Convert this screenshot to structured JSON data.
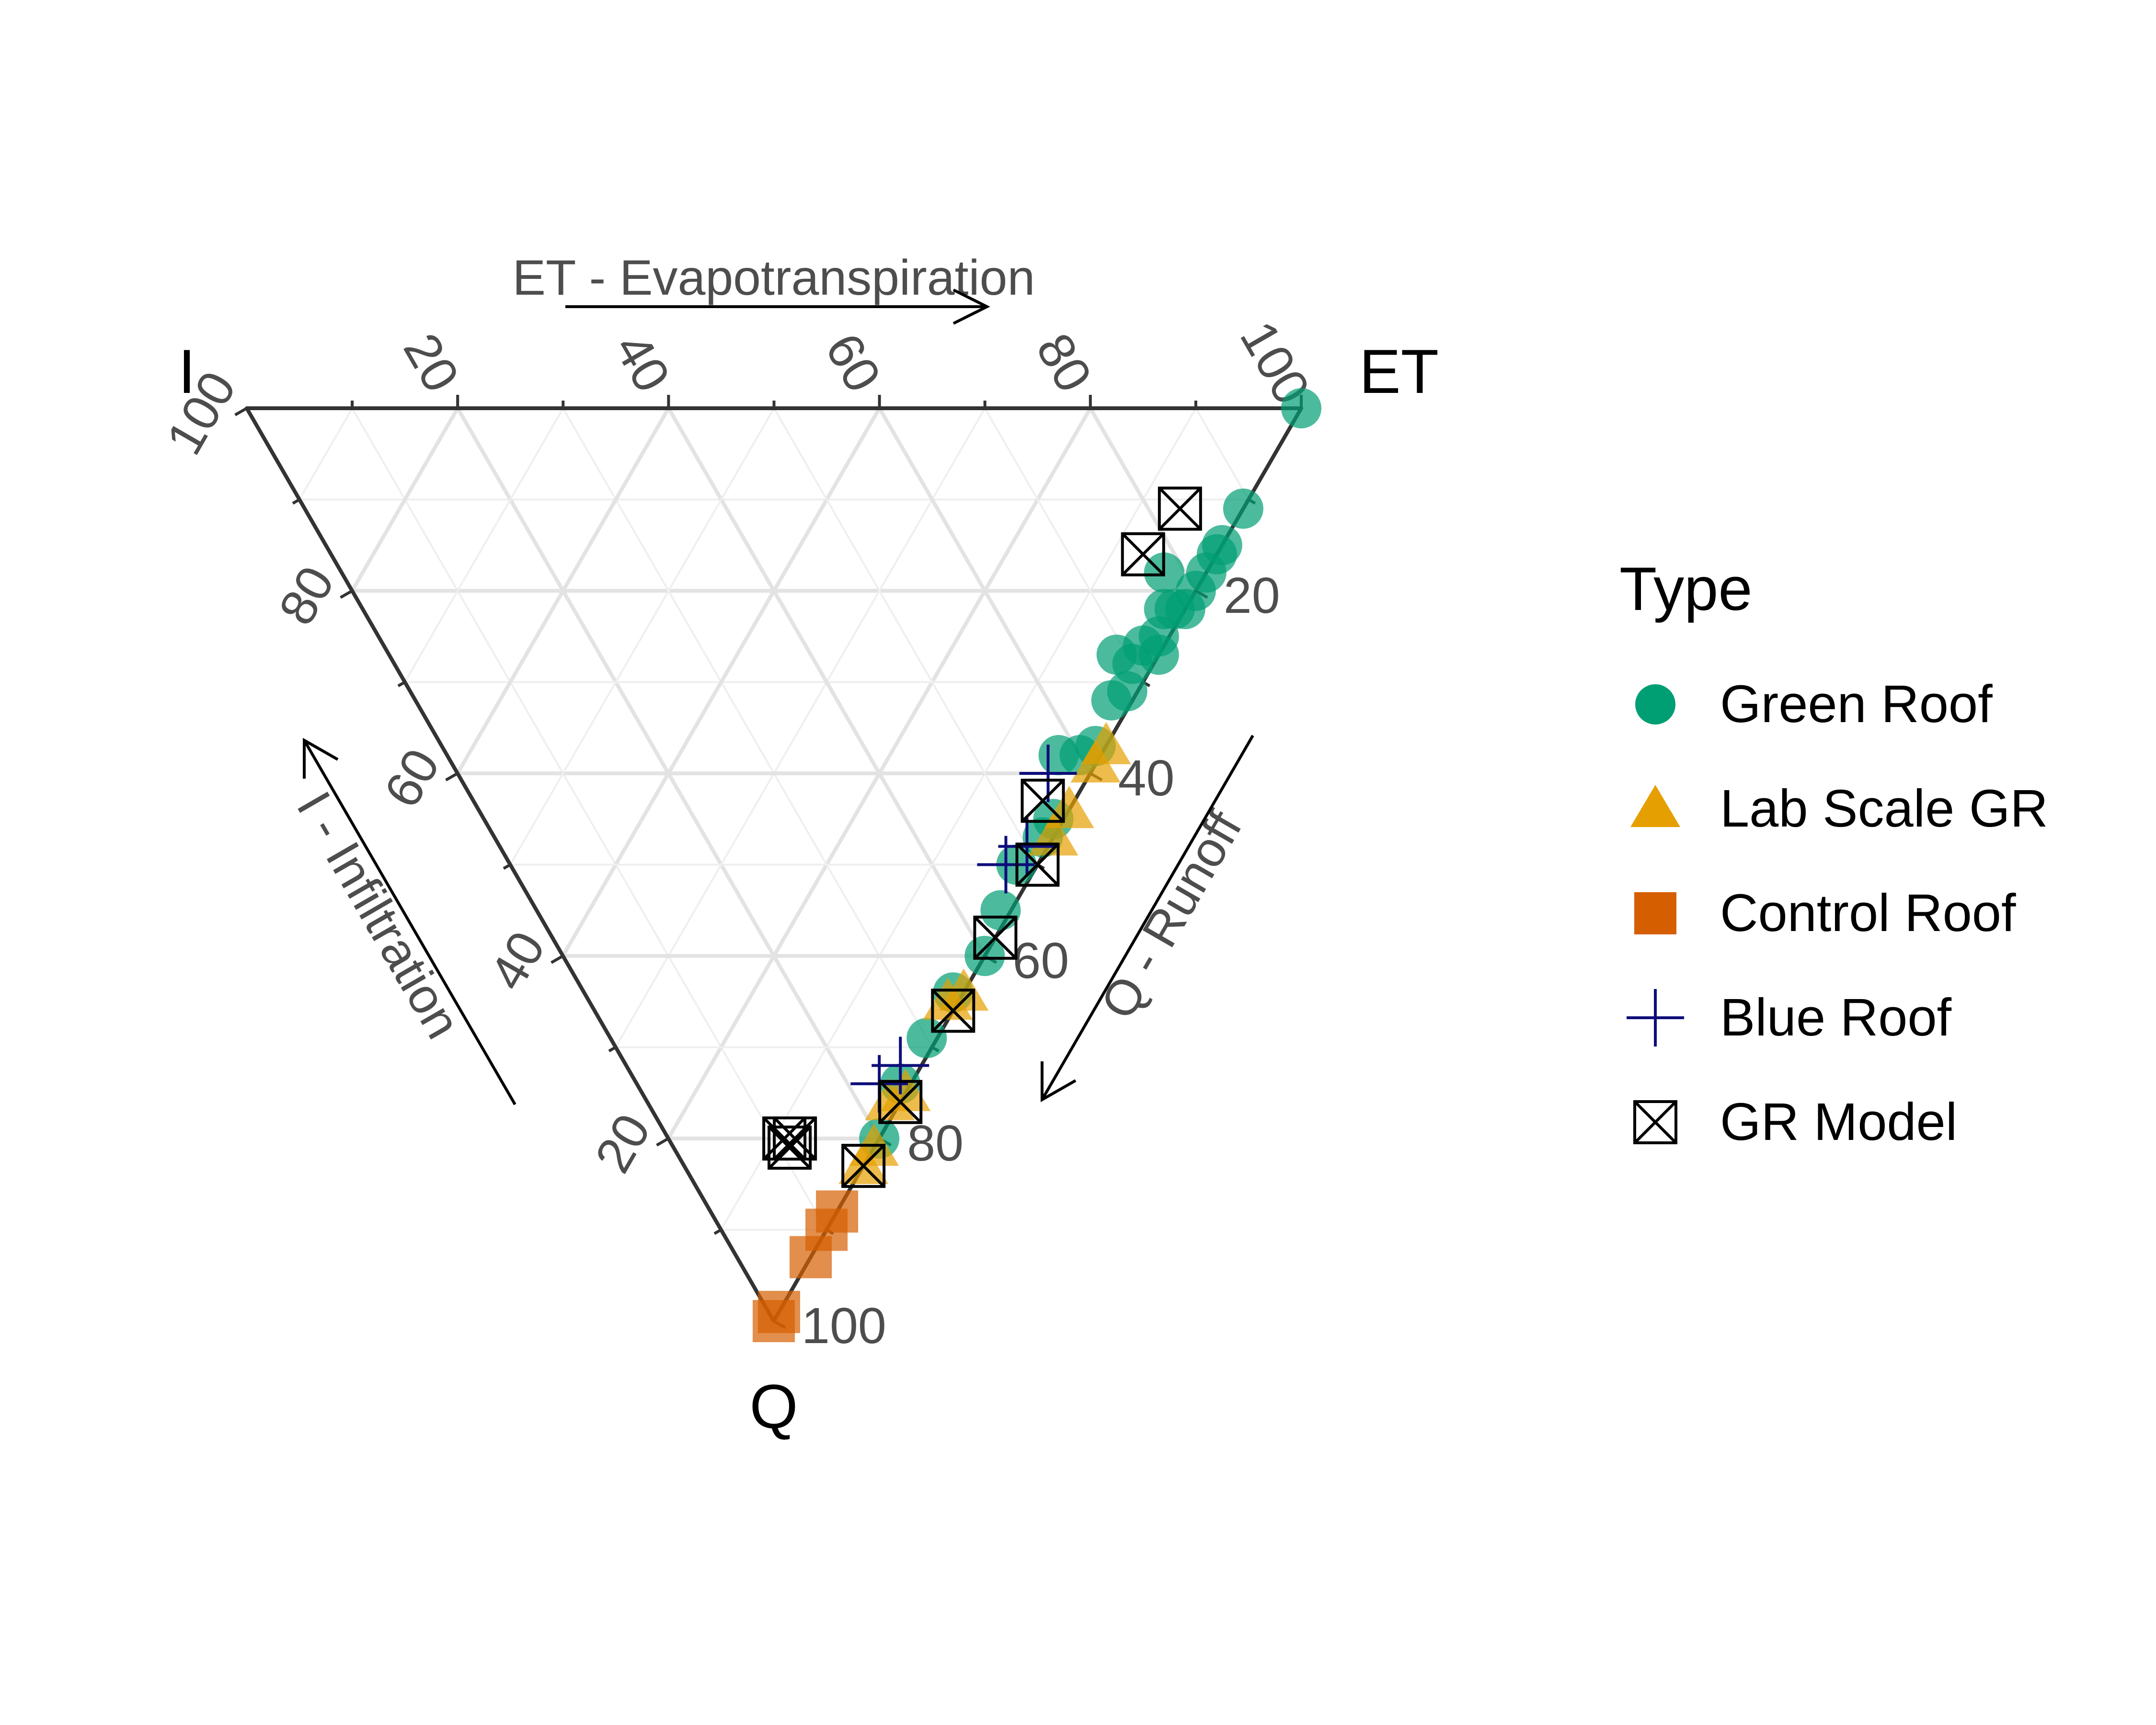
{
  "chart_data": {
    "type": "scatter",
    "subtype": "ternary",
    "axes": {
      "top": {
        "vertex_label": "ET",
        "title": "ET - Evapotranspiration"
      },
      "left": {
        "vertex_label": "I",
        "title": "I - Infiltration"
      },
      "right": {
        "vertex_label": "Q",
        "title": "Q - Runoff"
      },
      "range": [
        0,
        100
      ],
      "ticks": [
        "20",
        "40",
        "60",
        "80",
        "100"
      ]
    },
    "grid": true,
    "legend": {
      "title": "Type",
      "placement": "right",
      "entries": [
        {
          "label": "Green Roof",
          "shape": "circle",
          "color": "#009E73"
        },
        {
          "label": "Lab Scale GR",
          "shape": "triangle",
          "color": "#E69F00"
        },
        {
          "label": "Control Roof",
          "shape": "square",
          "color": "#D55E00"
        },
        {
          "label": "Blue Roof",
          "shape": "plus",
          "color": "#0D0D7A"
        },
        {
          "label": "GR Model",
          "shape": "boxed-x",
          "color": "#000000"
        }
      ]
    },
    "series": [
      {
        "name": "Green Roof",
        "points": [
          {
            "ET": 100,
            "I": 0,
            "Q": 0
          },
          {
            "ET": 89,
            "I": 0,
            "Q": 11
          },
          {
            "ET": 85,
            "I": 0,
            "Q": 15
          },
          {
            "ET": 84,
            "I": 0,
            "Q": 16
          },
          {
            "ET": 82,
            "I": 0,
            "Q": 18
          },
          {
            "ET": 78,
            "I": 4,
            "Q": 18
          },
          {
            "ET": 80,
            "I": 0,
            "Q": 20
          },
          {
            "ET": 78,
            "I": 0,
            "Q": 22
          },
          {
            "ET": 77,
            "I": 1,
            "Q": 22
          },
          {
            "ET": 76,
            "I": 2,
            "Q": 22
          },
          {
            "ET": 74,
            "I": 1,
            "Q": 25
          },
          {
            "ET": 73,
            "I": 0,
            "Q": 27
          },
          {
            "ET": 72,
            "I": 2,
            "Q": 26
          },
          {
            "ET": 70,
            "I": 2,
            "Q": 28
          },
          {
            "ET": 69,
            "I": 4,
            "Q": 27
          },
          {
            "ET": 68,
            "I": 1,
            "Q": 31
          },
          {
            "ET": 66,
            "I": 2,
            "Q": 32
          },
          {
            "ET": 62,
            "I": 1,
            "Q": 37
          },
          {
            "ET": 60,
            "I": 2,
            "Q": 38
          },
          {
            "ET": 58,
            "I": 4,
            "Q": 38
          },
          {
            "ET": 54,
            "I": 1,
            "Q": 45
          },
          {
            "ET": 52,
            "I": 1,
            "Q": 47
          },
          {
            "ET": 48,
            "I": 2,
            "Q": 50
          },
          {
            "ET": 44,
            "I": 1,
            "Q": 55
          },
          {
            "ET": 40,
            "I": 0,
            "Q": 60
          },
          {
            "ET": 35,
            "I": 1,
            "Q": 64
          },
          {
            "ET": 30,
            "I": 1,
            "Q": 69
          },
          {
            "ET": 25,
            "I": 1,
            "Q": 74
          },
          {
            "ET": 20,
            "I": 0,
            "Q": 80
          }
        ]
      },
      {
        "name": "Lab Scale GR",
        "points": [
          {
            "ET": 63,
            "I": 0,
            "Q": 37
          },
          {
            "ET": 61,
            "I": 0,
            "Q": 39
          },
          {
            "ET": 56,
            "I": 0,
            "Q": 44
          },
          {
            "ET": 53,
            "I": 0,
            "Q": 47
          },
          {
            "ET": 36,
            "I": 0,
            "Q": 64
          },
          {
            "ET": 34,
            "I": 1,
            "Q": 65
          },
          {
            "ET": 25,
            "I": 0,
            "Q": 75
          },
          {
            "ET": 23,
            "I": 1,
            "Q": 76
          },
          {
            "ET": 19,
            "I": 0,
            "Q": 81
          },
          {
            "ET": 17,
            "I": 0,
            "Q": 83
          }
        ]
      },
      {
        "name": "Control Roof",
        "points": [
          {
            "ET": 12,
            "I": 0,
            "Q": 88
          },
          {
            "ET": 10,
            "I": 0,
            "Q": 90
          },
          {
            "ET": 7,
            "I": 0,
            "Q": 93
          },
          {
            "ET": 1,
            "I": 0,
            "Q": 99
          },
          {
            "ET": 0,
            "I": 0,
            "Q": 100
          }
        ]
      },
      {
        "name": "Blue Roof",
        "points": [
          {
            "ET": 56,
            "I": 4,
            "Q": 40
          },
          {
            "ET": 50,
            "I": 2,
            "Q": 48
          },
          {
            "ET": 47,
            "I": 3,
            "Q": 50
          },
          {
            "ET": 26,
            "I": 2,
            "Q": 72
          },
          {
            "ET": 23,
            "I": 3,
            "Q": 74
          }
        ]
      },
      {
        "name": "GR Model",
        "points": [
          {
            "ET": 83,
            "I": 6,
            "Q": 11
          },
          {
            "ET": 77,
            "I": 7,
            "Q": 16
          },
          {
            "ET": 54,
            "I": 3,
            "Q": 43
          },
          {
            "ET": 50,
            "I": 0,
            "Q": 50
          },
          {
            "ET": 42,
            "I": 0,
            "Q": 58
          },
          {
            "ET": 34,
            "I": 0,
            "Q": 66
          },
          {
            "ET": 24,
            "I": 0,
            "Q": 76
          },
          {
            "ET": 12,
            "I": 8,
            "Q": 80
          },
          {
            "ET": 11,
            "I": 8,
            "Q": 81
          },
          {
            "ET": 11,
            "I": 9,
            "Q": 80
          },
          {
            "ET": 17,
            "I": 0,
            "Q": 83
          }
        ]
      }
    ]
  }
}
